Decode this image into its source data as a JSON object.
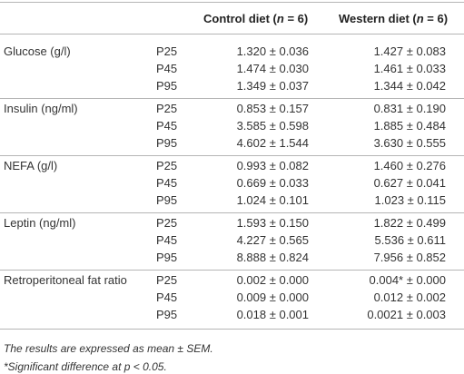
{
  "table": {
    "header": [
      {
        "prefix": "Control diet (",
        "var": "n",
        "suffix": " = 6)"
      },
      {
        "prefix": "Western diet (",
        "var": "n",
        "suffix": " = 6)"
      }
    ],
    "rows": [
      {
        "label": "Glucose (g/l)",
        "periods": [
          "P25",
          "P45",
          "P95"
        ],
        "control": [
          "1.320 ± 0.036",
          "1.474 ± 0.030",
          "1.349 ± 0.037"
        ],
        "western": [
          "1.427 ± 0.083",
          "1.461 ± 0.033",
          "1.344 ± 0.042"
        ]
      },
      {
        "label": "Insulin (ng/ml)",
        "periods": [
          "P25",
          "P45",
          "P95"
        ],
        "control": [
          "0.853 ± 0.157",
          "3.585 ± 0.598",
          "4.602 ± 1.544"
        ],
        "western": [
          "0.831 ± 0.190",
          "1.885 ± 0.484",
          "3.630 ± 0.555"
        ]
      },
      {
        "label": "NEFA (g/l)",
        "periods": [
          "P25",
          "P45",
          "P95"
        ],
        "control": [
          "0.993 ± 0.082",
          "0.669 ± 0.033",
          "1.024 ± 0.101"
        ],
        "western": [
          "1.460 ± 0.276",
          "0.627 ± 0.041",
          "1.023 ± 0.115"
        ]
      },
      {
        "label": "Leptin (ng/ml)",
        "periods": [
          "P25",
          "P45",
          "P95"
        ],
        "control": [
          "1.593 ± 0.150",
          "4.227 ± 0.565",
          "8.888 ± 0.824"
        ],
        "western": [
          "1.822 ± 0.499",
          "5.536 ± 0.611",
          "7.956 ± 0.852"
        ]
      },
      {
        "label": "Retroperitoneal fat ratio",
        "periods": [
          "P25",
          "P45",
          "P95"
        ],
        "control": [
          "0.002 ± 0.000",
          "0.009 ± 0.000",
          "0.018 ± 0.001"
        ],
        "western": [
          "0.004* ± 0.000",
          "0.012 ± 0.002",
          "0.0021 ± 0.003"
        ]
      }
    ]
  },
  "notes": [
    "The results are expressed as mean ± SEM.",
    "*Significant difference at p < 0.05."
  ]
}
